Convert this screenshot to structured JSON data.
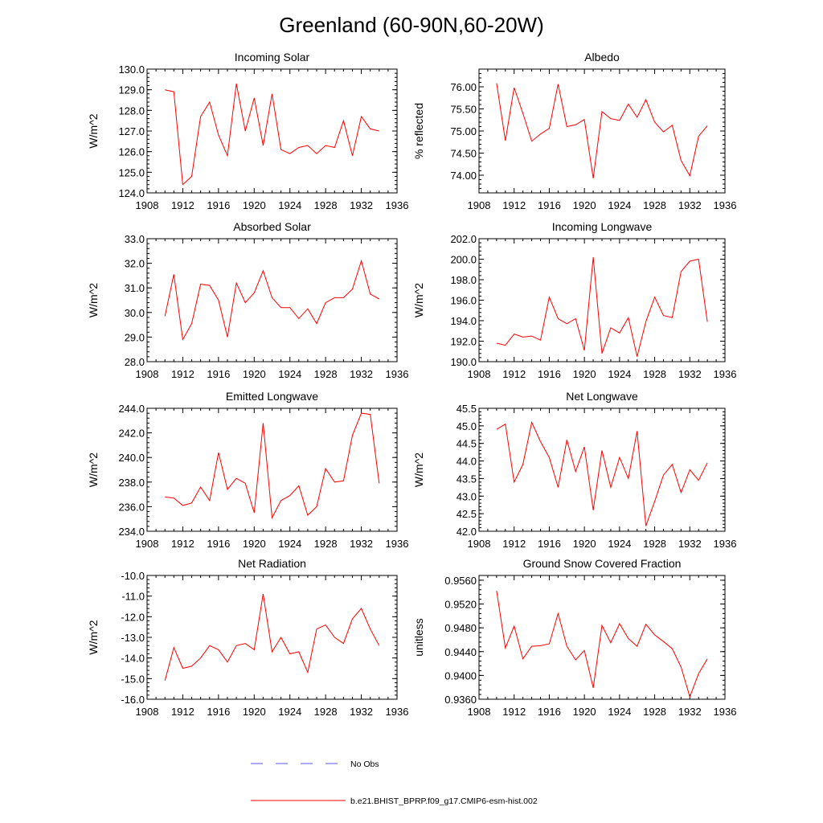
{
  "title": "Greenland (60-90N,60-20W)",
  "colors": {
    "series": "#ff0000",
    "obs": "#5555ee",
    "axis": "#000000"
  },
  "legend": {
    "obs_label": "No Obs",
    "model_label": "b.e21.BHIST_BPRP.f09_g17.CMIP6-esm-hist.002"
  },
  "chart_data": [
    {
      "type": "line",
      "title": "Incoming Solar",
      "ylabel": "W/m^2",
      "xlabel": "",
      "xlim": [
        1908,
        1936
      ],
      "xticks": [
        1908,
        1912,
        1916,
        1920,
        1924,
        1928,
        1932,
        1936
      ],
      "ylim": [
        124.0,
        130.0
      ],
      "yticks": [
        "124.0",
        "125.0",
        "126.0",
        "127.0",
        "128.0",
        "129.0",
        "130.0"
      ],
      "x": [
        1910,
        1911,
        1912,
        1913,
        1914,
        1915,
        1916,
        1917,
        1918,
        1919,
        1920,
        1921,
        1922,
        1923,
        1924,
        1925,
        1926,
        1927,
        1928,
        1929,
        1930,
        1931,
        1932,
        1933,
        1934
      ],
      "series": [
        {
          "name": "b.e21.BHIST_BPRP.f09_g17.CMIP6-esm-hist.002",
          "values": [
            129.0,
            128.9,
            124.4,
            124.8,
            127.7,
            128.4,
            126.8,
            125.8,
            129.3,
            127.0,
            128.6,
            126.3,
            128.8,
            126.1,
            125.9,
            126.2,
            126.3,
            125.9,
            126.3,
            126.2,
            127.5,
            125.8,
            127.7,
            127.1,
            127.0
          ]
        }
      ]
    },
    {
      "type": "line",
      "title": "Albedo",
      "ylabel": "% reflected",
      "xlabel": "",
      "xlim": [
        1908,
        1936
      ],
      "xticks": [
        1908,
        1912,
        1916,
        1920,
        1924,
        1928,
        1932,
        1936
      ],
      "ylim": [
        73.6,
        76.4
      ],
      "yticks": [
        "74.00",
        "74.50",
        "75.00",
        "75.50",
        "76.00"
      ],
      "x": [
        1910,
        1911,
        1912,
        1913,
        1914,
        1915,
        1916,
        1917,
        1918,
        1919,
        1920,
        1921,
        1922,
        1923,
        1924,
        1925,
        1926,
        1927,
        1928,
        1929,
        1930,
        1931,
        1932,
        1933,
        1934
      ],
      "series": [
        {
          "name": "b.e21.BHIST_BPRP.f09_g17.CMIP6-esm-hist.002",
          "values": [
            76.08,
            74.78,
            75.98,
            75.4,
            74.77,
            74.93,
            75.06,
            76.06,
            75.1,
            75.14,
            75.26,
            73.93,
            75.44,
            75.28,
            75.24,
            75.61,
            75.31,
            75.71,
            75.2,
            74.98,
            75.13,
            74.33,
            73.99,
            74.88,
            75.12
          ]
        }
      ]
    },
    {
      "type": "line",
      "title": "Absorbed Solar",
      "ylabel": "W/m^2",
      "xlabel": "",
      "xlim": [
        1908,
        1936
      ],
      "xticks": [
        1908,
        1912,
        1916,
        1920,
        1924,
        1928,
        1932,
        1936
      ],
      "ylim": [
        28.0,
        33.0
      ],
      "yticks": [
        "28.0",
        "29.0",
        "30.0",
        "31.0",
        "32.0",
        "33.0"
      ],
      "x": [
        1910,
        1911,
        1912,
        1913,
        1914,
        1915,
        1916,
        1917,
        1918,
        1919,
        1920,
        1921,
        1922,
        1923,
        1924,
        1925,
        1926,
        1927,
        1928,
        1929,
        1930,
        1931,
        1932,
        1933,
        1934
      ],
      "series": [
        {
          "name": "b.e21.BHIST_BPRP.f09_g17.CMIP6-esm-hist.002",
          "values": [
            29.85,
            31.55,
            28.9,
            29.55,
            31.15,
            31.1,
            30.5,
            29.0,
            31.2,
            30.4,
            30.8,
            31.7,
            30.6,
            30.2,
            30.2,
            29.75,
            30.15,
            29.55,
            30.4,
            30.6,
            30.6,
            30.95,
            32.1,
            30.75,
            30.55
          ]
        }
      ]
    },
    {
      "type": "line",
      "title": "Incoming Longwave",
      "ylabel": "W/m^2",
      "xlabel": "",
      "xlim": [
        1908,
        1936
      ],
      "xticks": [
        1908,
        1912,
        1916,
        1920,
        1924,
        1928,
        1932,
        1936
      ],
      "ylim": [
        190.0,
        202.0
      ],
      "yticks": [
        "190.0",
        "192.0",
        "194.0",
        "196.0",
        "198.0",
        "200.0",
        "202.0"
      ],
      "x": [
        1910,
        1911,
        1912,
        1913,
        1914,
        1915,
        1916,
        1917,
        1918,
        1919,
        1920,
        1921,
        1922,
        1923,
        1924,
        1925,
        1926,
        1927,
        1928,
        1929,
        1930,
        1931,
        1932,
        1933,
        1934
      ],
      "series": [
        {
          "name": "b.e21.BHIST_BPRP.f09_g17.CMIP6-esm-hist.002",
          "values": [
            191.8,
            191.6,
            192.7,
            192.4,
            192.5,
            192.1,
            196.3,
            194.2,
            193.7,
            194.2,
            191.1,
            200.2,
            190.8,
            193.3,
            192.8,
            194.3,
            190.5,
            193.9,
            196.3,
            194.5,
            194.3,
            198.8,
            199.8,
            200.0,
            193.9
          ]
        }
      ]
    },
    {
      "type": "line",
      "title": "Emitted Longwave",
      "ylabel": "W/m^2",
      "xlabel": "",
      "xlim": [
        1908,
        1936
      ],
      "xticks": [
        1908,
        1912,
        1916,
        1920,
        1924,
        1928,
        1932,
        1936
      ],
      "ylim": [
        234.0,
        244.0
      ],
      "yticks": [
        "234.0",
        "236.0",
        "238.0",
        "240.0",
        "242.0",
        "244.0"
      ],
      "x": [
        1910,
        1911,
        1912,
        1913,
        1914,
        1915,
        1916,
        1917,
        1918,
        1919,
        1920,
        1921,
        1922,
        1923,
        1924,
        1925,
        1926,
        1927,
        1928,
        1929,
        1930,
        1931,
        1932,
        1933,
        1934
      ],
      "series": [
        {
          "name": "b.e21.BHIST_BPRP.f09_g17.CMIP6-esm-hist.002",
          "values": [
            236.8,
            236.7,
            236.1,
            236.3,
            237.6,
            236.5,
            240.4,
            237.4,
            238.3,
            237.9,
            235.5,
            242.8,
            235.1,
            236.5,
            236.9,
            237.7,
            235.3,
            236.0,
            239.1,
            238.0,
            238.1,
            241.8,
            243.6,
            243.5,
            237.9
          ]
        }
      ]
    },
    {
      "type": "line",
      "title": "Net Longwave",
      "ylabel": "W/m^2",
      "xlabel": "",
      "xlim": [
        1908,
        1936
      ],
      "xticks": [
        1908,
        1912,
        1916,
        1920,
        1924,
        1928,
        1932,
        1936
      ],
      "ylim": [
        42.0,
        45.5
      ],
      "yticks": [
        "42.0",
        "42.5",
        "43.0",
        "43.5",
        "44.0",
        "44.5",
        "45.0",
        "45.5"
      ],
      "x": [
        1910,
        1911,
        1912,
        1913,
        1914,
        1915,
        1916,
        1917,
        1918,
        1919,
        1920,
        1921,
        1922,
        1923,
        1924,
        1925,
        1926,
        1927,
        1928,
        1929,
        1930,
        1931,
        1932,
        1933,
        1934
      ],
      "series": [
        {
          "name": "b.e21.BHIST_BPRP.f09_g17.CMIP6-esm-hist.002",
          "values": [
            44.9,
            45.05,
            43.4,
            43.9,
            45.1,
            44.55,
            44.1,
            43.25,
            44.6,
            43.7,
            44.4,
            42.6,
            44.3,
            43.25,
            44.1,
            43.5,
            44.85,
            42.15,
            42.85,
            43.6,
            43.9,
            43.1,
            43.75,
            43.45,
            43.95
          ]
        }
      ]
    },
    {
      "type": "line",
      "title": "Net Radiation",
      "ylabel": "W/m^2",
      "xlabel": "",
      "xlim": [
        1908,
        1936
      ],
      "xticks": [
        1908,
        1912,
        1916,
        1920,
        1924,
        1928,
        1932,
        1936
      ],
      "ylim": [
        -16.0,
        -10.0
      ],
      "yticks": [
        "-16.0",
        "-15.0",
        "-14.0",
        "-13.0",
        "-12.0",
        "-11.0",
        "-10.0"
      ],
      "x": [
        1910,
        1911,
        1912,
        1913,
        1914,
        1915,
        1916,
        1917,
        1918,
        1919,
        1920,
        1921,
        1922,
        1923,
        1924,
        1925,
        1926,
        1927,
        1928,
        1929,
        1930,
        1931,
        1932,
        1933,
        1934
      ],
      "series": [
        {
          "name": "b.e21.BHIST_BPRP.f09_g17.CMIP6-esm-hist.002",
          "values": [
            -15.1,
            -13.5,
            -14.5,
            -14.4,
            -14.0,
            -13.4,
            -13.6,
            -14.2,
            -13.4,
            -13.3,
            -13.6,
            -10.9,
            -13.7,
            -13.0,
            -13.8,
            -13.7,
            -14.7,
            -12.6,
            -12.4,
            -13.0,
            -13.3,
            -12.1,
            -11.6,
            -12.6,
            -13.4
          ]
        }
      ]
    },
    {
      "type": "line",
      "title": "Ground Snow Covered Fraction",
      "ylabel": "unitless",
      "xlabel": "",
      "xlim": [
        1908,
        1936
      ],
      "xticks": [
        1908,
        1912,
        1916,
        1920,
        1924,
        1928,
        1932,
        1936
      ],
      "ylim": [
        0.936,
        0.9568
      ],
      "yticks": [
        "0.9360",
        "0.9400",
        "0.9440",
        "0.9480",
        "0.9520",
        "0.9560"
      ],
      "x": [
        1910,
        1911,
        1912,
        1913,
        1914,
        1915,
        1916,
        1917,
        1918,
        1919,
        1920,
        1921,
        1922,
        1923,
        1924,
        1925,
        1926,
        1927,
        1928,
        1929,
        1930,
        1931,
        1932,
        1933,
        1934
      ],
      "series": [
        {
          "name": "b.e21.BHIST_BPRP.f09_g17.CMIP6-esm-hist.002",
          "values": [
            0.9542,
            0.9446,
            0.9483,
            0.9428,
            0.9449,
            0.945,
            0.9453,
            0.9504,
            0.9449,
            0.9426,
            0.9442,
            0.9379,
            0.9484,
            0.9455,
            0.9487,
            0.9462,
            0.9449,
            0.9486,
            0.9468,
            0.9457,
            0.9445,
            0.9414,
            0.9364,
            0.9403,
            0.9428
          ]
        }
      ]
    }
  ]
}
